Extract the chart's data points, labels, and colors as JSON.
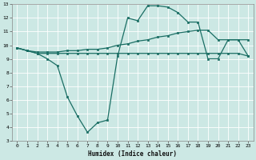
{
  "xlabel": "Humidex (Indice chaleur)",
  "background_color": "#cce8e4",
  "grid_color": "#b0d8d4",
  "line_color": "#1a6e64",
  "xlim": [
    -0.5,
    23.5
  ],
  "ylim": [
    3,
    13
  ],
  "xticks": [
    0,
    1,
    2,
    3,
    4,
    5,
    6,
    7,
    8,
    9,
    10,
    11,
    12,
    13,
    14,
    15,
    16,
    17,
    18,
    19,
    20,
    21,
    22,
    23
  ],
  "yticks": [
    3,
    4,
    5,
    6,
    7,
    8,
    9,
    10,
    11,
    12,
    13
  ],
  "line1_x": [
    0,
    1,
    2,
    3,
    4,
    5,
    6,
    7,
    8,
    9,
    10,
    11,
    12,
    13,
    14,
    15,
    16,
    17,
    18,
    19,
    20,
    21,
    22,
    23
  ],
  "line1_y": [
    9.8,
    9.6,
    9.5,
    9.5,
    9.5,
    9.6,
    9.6,
    9.7,
    9.7,
    9.8,
    10.0,
    10.1,
    10.3,
    10.4,
    10.6,
    10.7,
    10.9,
    11.0,
    11.1,
    11.1,
    10.4,
    10.4,
    10.4,
    10.4
  ],
  "line2_x": [
    0,
    1,
    2,
    3,
    4,
    5,
    6,
    7,
    8,
    9,
    10,
    11,
    12,
    13,
    14,
    15,
    16,
    17,
    18,
    19,
    20,
    21,
    22,
    23
  ],
  "line2_y": [
    9.8,
    9.6,
    9.4,
    9.0,
    8.5,
    6.2,
    4.8,
    3.6,
    4.3,
    4.5,
    9.2,
    12.0,
    11.8,
    12.9,
    12.9,
    12.8,
    12.4,
    11.7,
    11.7,
    9.0,
    9.0,
    10.4,
    10.4,
    9.2
  ],
  "line3_x": [
    0,
    1,
    2,
    3,
    4,
    5,
    6,
    7,
    8,
    9,
    10,
    11,
    12,
    13,
    14,
    15,
    16,
    17,
    18,
    19,
    20,
    21,
    22,
    23
  ],
  "line3_y": [
    9.8,
    9.6,
    9.4,
    9.4,
    9.4,
    9.4,
    9.4,
    9.4,
    9.4,
    9.4,
    9.4,
    9.4,
    9.4,
    9.4,
    9.4,
    9.4,
    9.4,
    9.4,
    9.4,
    9.4,
    9.4,
    9.4,
    9.4,
    9.2
  ]
}
